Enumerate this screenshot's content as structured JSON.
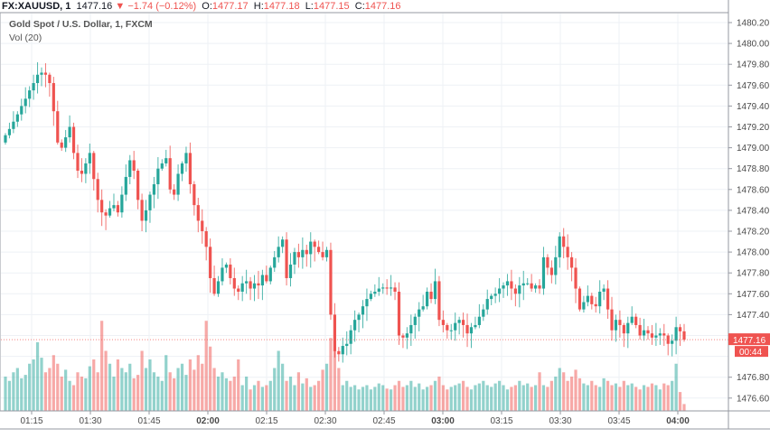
{
  "header": {
    "symbol": "FX:XAUUSD, 1",
    "last": "1477.16",
    "change": "−1.74 (−0.12%)",
    "o_label": "O:",
    "o": "1477.17",
    "h_label": "H:",
    "h": "1477.18",
    "l_label": "L:",
    "l": "1477.15",
    "c_label": "C:",
    "c": "1477.16"
  },
  "legend": {
    "title": "Gold Spot / U.S. Dollar, 1, FXCM",
    "vol": "Vol (20)"
  },
  "price_label": "1477.16",
  "countdown": "00:44",
  "colors": {
    "up": "#26a69a",
    "down": "#ef5350",
    "grid": "#eef1f5"
  },
  "chart_data": {
    "type": "candlestick",
    "title": "Gold Spot / U.S. Dollar, 1, FXCM",
    "ylim": [
      1476.5,
      1480.3
    ],
    "y_ticks": [
      "1480.20",
      "1480.00",
      "1479.80",
      "1479.60",
      "1479.40",
      "1479.20",
      "1479.00",
      "1478.80",
      "1478.60",
      "1478.40",
      "1478.20",
      "1478.00",
      "1477.80",
      "1477.60",
      "1477.40",
      "1476.80",
      "1476.60"
    ],
    "x_ticks": [
      "01:15",
      "01:30",
      "01:45",
      "02:00",
      "02:15",
      "02:30",
      "02:45",
      "03:00",
      "03:15",
      "03:30",
      "03:45",
      "04:00"
    ],
    "bold_x_ticks": [
      "02:00",
      "03:00",
      "04:00"
    ],
    "open_first": 1479.05,
    "closes": [
      1479.12,
      1479.18,
      1479.25,
      1479.32,
      1479.4,
      1479.47,
      1479.55,
      1479.62,
      1479.7,
      1479.72,
      1479.7,
      1479.62,
      1479.35,
      1479.05,
      1479.0,
      1479.1,
      1479.2,
      1478.95,
      1478.78,
      1478.75,
      1478.85,
      1478.95,
      1478.7,
      1478.5,
      1478.38,
      1478.35,
      1478.42,
      1478.45,
      1478.38,
      1478.55,
      1478.72,
      1478.88,
      1478.78,
      1478.5,
      1478.3,
      1478.4,
      1478.55,
      1478.65,
      1478.8,
      1478.85,
      1478.9,
      1478.6,
      1478.55,
      1478.75,
      1478.85,
      1478.95,
      1478.65,
      1478.45,
      1478.3,
      1478.2,
      1478.05,
      1477.75,
      1477.6,
      1477.72,
      1477.85,
      1477.88,
      1477.75,
      1477.65,
      1477.62,
      1477.7,
      1477.72,
      1477.65,
      1477.7,
      1477.68,
      1477.78,
      1477.72,
      1477.85,
      1477.95,
      1478.05,
      1478.12,
      1477.75,
      1477.88,
      1478.0,
      1477.95,
      1478.02,
      1477.98,
      1478.1,
      1478.05,
      1478.0,
      1477.95,
      1478.02,
      1477.4,
      1477.05,
      1477.02,
      1477.1,
      1477.12,
      1477.25,
      1477.35,
      1477.4,
      1477.48,
      1477.55,
      1477.6,
      1477.62,
      1477.65,
      1477.66,
      1477.65,
      1477.66,
      1477.62,
      1477.2,
      1477.18,
      1477.22,
      1477.3,
      1477.38,
      1477.45,
      1477.48,
      1477.62,
      1477.55,
      1477.72,
      1477.35,
      1477.3,
      1477.25,
      1477.25,
      1477.32,
      1477.35,
      1477.3,
      1477.22,
      1477.28,
      1477.3,
      1477.38,
      1477.45,
      1477.55,
      1477.58,
      1477.6,
      1477.65,
      1477.68,
      1477.72,
      1477.65,
      1477.6,
      1477.68,
      1477.7,
      1477.7,
      1477.65,
      1477.68,
      1477.65,
      1477.95,
      1477.85,
      1477.78,
      1477.95,
      1478.15,
      1478.05,
      1477.95,
      1477.85,
      1477.65,
      1477.45,
      1477.52,
      1477.58,
      1477.5,
      1477.48,
      1477.62,
      1477.65,
      1477.45,
      1477.25,
      1477.35,
      1477.3,
      1477.22,
      1477.32,
      1477.38,
      1477.3,
      1477.2,
      1477.25,
      1477.22,
      1477.18,
      1477.2,
      1477.22,
      1477.2,
      1477.12,
      1477.15,
      1477.28,
      1477.24,
      1477.16
    ],
    "volumes": [
      40,
      35,
      45,
      50,
      38,
      42,
      55,
      60,
      80,
      62,
      45,
      50,
      65,
      55,
      40,
      48,
      35,
      30,
      45,
      40,
      38,
      52,
      60,
      45,
      105,
      70,
      55,
      40,
      60,
      50,
      45,
      55,
      38,
      42,
      70,
      50,
      60,
      45,
      40,
      35,
      65,
      45,
      38,
      50,
      55,
      42,
      60,
      48,
      65,
      55,
      105,
      75,
      50,
      40,
      45,
      38,
      35,
      40,
      60,
      30,
      40,
      25,
      30,
      35,
      28,
      30,
      35,
      50,
      70,
      55,
      35,
      40,
      30,
      45,
      32,
      38,
      28,
      30,
      35,
      48,
      55,
      85,
      70,
      50,
      30,
      35,
      28,
      30,
      25,
      28,
      30,
      25,
      28,
      32,
      30,
      26,
      25,
      30,
      35,
      28,
      30,
      35,
      28,
      32,
      25,
      28,
      30,
      35,
      40,
      30,
      25,
      28,
      30,
      32,
      35,
      28,
      25,
      30,
      32,
      35,
      30,
      28,
      32,
      35,
      30,
      25,
      28,
      30,
      35,
      30,
      32,
      28,
      30,
      45,
      30,
      28,
      35,
      40,
      50,
      45,
      35,
      40,
      48,
      38,
      32,
      30,
      35,
      30,
      28,
      38,
      35,
      30,
      32,
      28,
      35,
      30,
      32,
      28,
      25,
      30,
      28,
      32,
      30,
      25,
      32,
      30,
      35,
      55,
      22,
      8
    ]
  }
}
